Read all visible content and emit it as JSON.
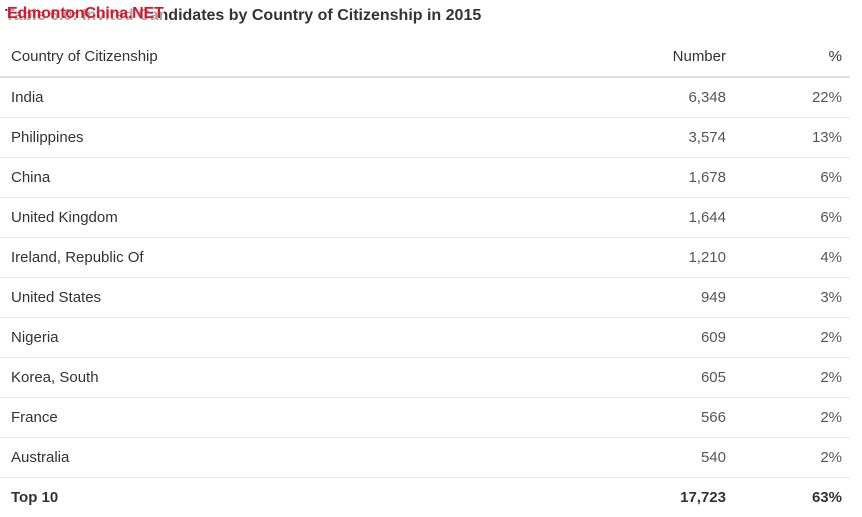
{
  "title": "Table 6.0: Invited Candidates by Country of Citizenship in 2015",
  "watermark": "EdmontonChina.NET",
  "table": {
    "headers": [
      "Country of Citizenship",
      "Number",
      "%"
    ],
    "rows": [
      [
        "India",
        "6,348",
        "22%"
      ],
      [
        "Philippines",
        "3,574",
        "13%"
      ],
      [
        "China",
        "1,678",
        "6%"
      ],
      [
        "United Kingdom",
        "1,644",
        "6%"
      ],
      [
        "Ireland, Republic Of",
        "1,210",
        "4%"
      ],
      [
        "United States",
        "949",
        "3%"
      ],
      [
        "Nigeria",
        "609",
        "2%"
      ],
      [
        "Korea, South",
        "605",
        "2%"
      ],
      [
        "France",
        "566",
        "2%"
      ],
      [
        "Australia",
        "540",
        "2%"
      ]
    ],
    "total": [
      "Top 10",
      "17,723",
      "63%"
    ]
  }
}
